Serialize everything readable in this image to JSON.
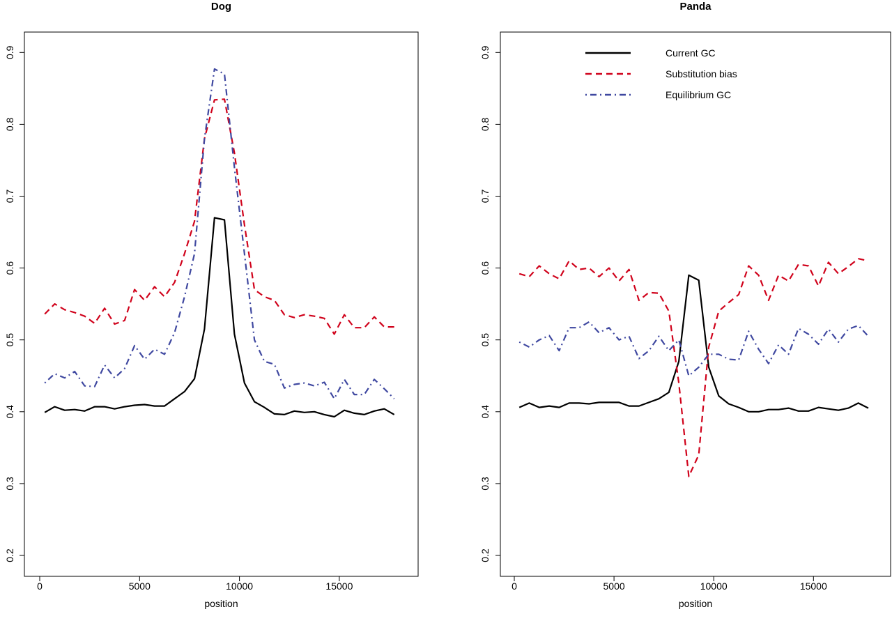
{
  "chart_data": [
    {
      "type": "line",
      "title": "Dog",
      "xlabel": "position",
      "ylabel": "",
      "xlim": [
        -450,
        18450
      ],
      "ylim": [
        0.172,
        0.928
      ],
      "xticks": [
        0,
        5000,
        10000,
        15000
      ],
      "xtick_labels": [
        "0",
        "5000",
        "10000",
        "15000"
      ],
      "yticks": [
        0.2,
        0.3,
        0.4,
        0.5,
        0.6,
        0.7,
        0.8,
        0.9
      ],
      "ytick_labels": [
        "0.2",
        "0.3",
        "0.4",
        "0.5",
        "0.6",
        "0.7",
        "0.8",
        "0.9"
      ],
      "x": [
        250,
        750,
        1250,
        1750,
        2250,
        2750,
        3250,
        3750,
        4250,
        4750,
        5250,
        5750,
        6250,
        6750,
        7250,
        7750,
        8250,
        8750,
        9250,
        9750,
        10250,
        10750,
        11250,
        11750,
        12250,
        12750,
        13250,
        13750,
        14250,
        14750,
        15250,
        15750,
        16250,
        16750,
        17250,
        17750
      ],
      "series": [
        {
          "name": "Current GC",
          "style": "solid",
          "color": "#000000",
          "values": [
            0.399,
            0.407,
            0.402,
            0.403,
            0.401,
            0.407,
            0.407,
            0.404,
            0.407,
            0.409,
            0.41,
            0.408,
            0.408,
            0.418,
            0.428,
            0.446,
            0.515,
            0.67,
            0.667,
            0.508,
            0.44,
            0.414,
            0.406,
            0.397,
            0.396,
            0.401,
            0.399,
            0.4,
            0.396,
            0.393,
            0.402,
            0.398,
            0.396,
            0.401,
            0.404,
            0.396
          ]
        },
        {
          "name": "Substitution bias",
          "style": "dashed",
          "color": "#d0021b",
          "values": [
            0.536,
            0.55,
            0.542,
            0.538,
            0.533,
            0.523,
            0.544,
            0.522,
            0.527,
            0.57,
            0.555,
            0.574,
            0.56,
            0.58,
            0.62,
            0.665,
            0.78,
            0.834,
            0.835,
            0.76,
            0.66,
            0.57,
            0.56,
            0.555,
            0.535,
            0.531,
            0.535,
            0.533,
            0.53,
            0.508,
            0.535,
            0.517,
            0.517,
            0.532,
            0.518,
            0.518
          ]
        },
        {
          "name": "Equilibrium GC",
          "style": "dotdash",
          "color": "#3f48a0",
          "values": [
            0.44,
            0.453,
            0.447,
            0.456,
            0.436,
            0.435,
            0.465,
            0.447,
            0.46,
            0.492,
            0.473,
            0.487,
            0.48,
            0.51,
            0.56,
            0.62,
            0.78,
            0.877,
            0.87,
            0.74,
            0.62,
            0.5,
            0.47,
            0.466,
            0.433,
            0.438,
            0.44,
            0.436,
            0.441,
            0.418,
            0.445,
            0.424,
            0.424,
            0.445,
            0.432,
            0.418
          ]
        }
      ]
    },
    {
      "type": "line",
      "title": "Panda",
      "xlabel": "position",
      "ylabel": "",
      "xlim": [
        -450,
        18450
      ],
      "ylim": [
        0.172,
        0.928
      ],
      "xticks": [
        0,
        5000,
        10000,
        15000
      ],
      "xtick_labels": [
        "0",
        "5000",
        "10000",
        "15000"
      ],
      "yticks": [
        0.2,
        0.3,
        0.4,
        0.5,
        0.6,
        0.7,
        0.8,
        0.9
      ],
      "ytick_labels": [
        "0.2",
        "0.3",
        "0.4",
        "0.5",
        "0.6",
        "0.7",
        "0.8",
        "0.9"
      ],
      "legend": {
        "position": "top-center",
        "entries": [
          "Current GC",
          "Substitution bias",
          "Equilibrium GC"
        ]
      },
      "x": [
        250,
        750,
        1250,
        1750,
        2250,
        2750,
        3250,
        3750,
        4250,
        4750,
        5250,
        5750,
        6250,
        6750,
        7250,
        7750,
        8250,
        8750,
        9250,
        9750,
        10250,
        10750,
        11250,
        11750,
        12250,
        12750,
        13250,
        13750,
        14250,
        14750,
        15250,
        15750,
        16250,
        16750,
        17250,
        17750
      ],
      "series": [
        {
          "name": "Current GC",
          "style": "solid",
          "color": "#000000",
          "values": [
            0.406,
            0.412,
            0.406,
            0.408,
            0.406,
            0.412,
            0.412,
            0.411,
            0.413,
            0.413,
            0.413,
            0.408,
            0.408,
            0.413,
            0.418,
            0.427,
            0.47,
            0.59,
            0.583,
            0.462,
            0.422,
            0.411,
            0.406,
            0.4,
            0.4,
            0.403,
            0.403,
            0.405,
            0.401,
            0.401,
            0.406,
            0.404,
            0.402,
            0.405,
            0.412,
            0.405
          ]
        },
        {
          "name": "Substitution bias",
          "style": "dashed",
          "color": "#d0021b",
          "values": [
            0.592,
            0.588,
            0.603,
            0.592,
            0.585,
            0.61,
            0.598,
            0.6,
            0.588,
            0.6,
            0.582,
            0.598,
            0.555,
            0.566,
            0.565,
            0.54,
            0.44,
            0.31,
            0.34,
            0.49,
            0.54,
            0.552,
            0.563,
            0.603,
            0.59,
            0.555,
            0.59,
            0.582,
            0.605,
            0.603,
            0.575,
            0.608,
            0.592,
            0.602,
            0.613,
            0.61
          ]
        },
        {
          "name": "Equilibrium GC",
          "style": "dotdash",
          "color": "#3f48a0",
          "values": [
            0.497,
            0.49,
            0.5,
            0.506,
            0.485,
            0.517,
            0.517,
            0.525,
            0.51,
            0.517,
            0.5,
            0.505,
            0.474,
            0.485,
            0.505,
            0.485,
            0.5,
            0.45,
            0.462,
            0.48,
            0.48,
            0.473,
            0.472,
            0.512,
            0.487,
            0.467,
            0.493,
            0.48,
            0.516,
            0.508,
            0.494,
            0.515,
            0.497,
            0.515,
            0.52,
            0.505
          ]
        }
      ]
    }
  ]
}
